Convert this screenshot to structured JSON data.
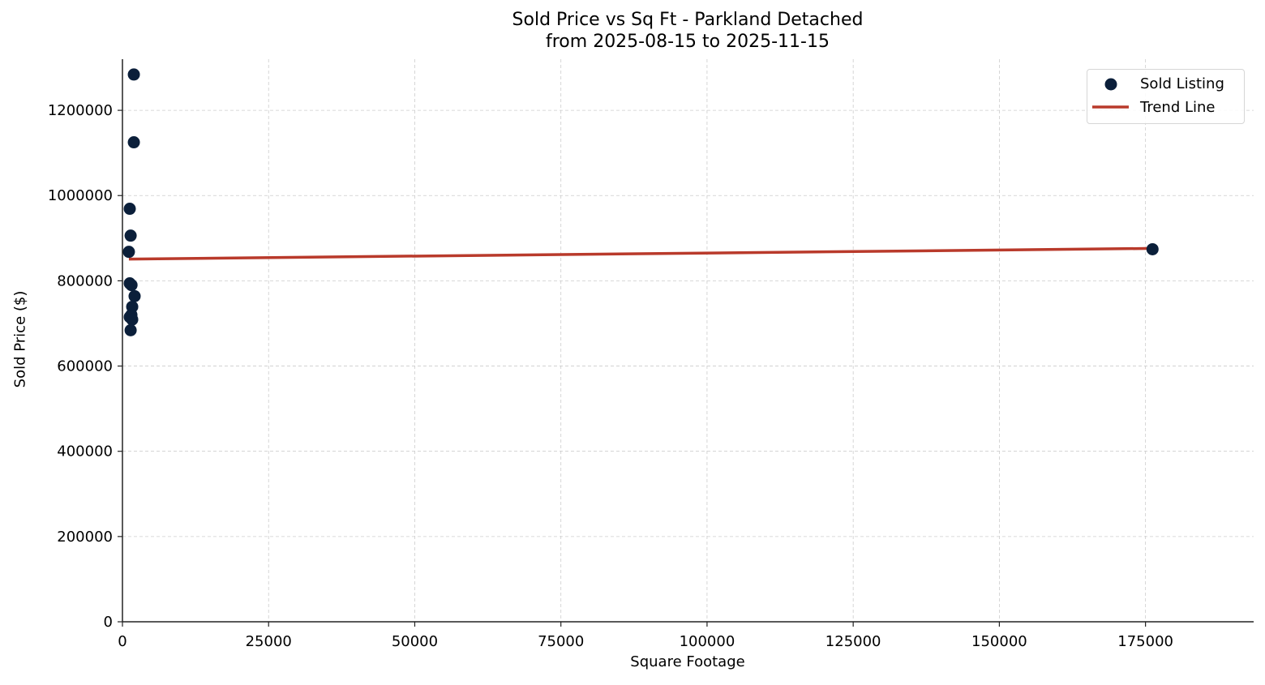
{
  "chart_data": {
    "type": "scatter",
    "title": "Sold Price vs Sq Ft - Parkland Detached",
    "subtitle": "from 2025-08-15 to 2025-11-15",
    "xlabel": "Square Footage",
    "ylabel": "Sold Price ($)",
    "xlim": [
      0,
      193500
    ],
    "ylim": [
      0,
      1320000
    ],
    "xticks": [
      0,
      25000,
      50000,
      75000,
      100000,
      125000,
      150000,
      175000
    ],
    "yticks": [
      0,
      200000,
      400000,
      600000,
      800000,
      1000000,
      1200000
    ],
    "grid": true,
    "legend_position": "upper right",
    "series": [
      {
        "name": "Sold Listing",
        "type": "scatter",
        "color": "#0b1f3a",
        "points": [
          {
            "x": 1950,
            "y": 1284000
          },
          {
            "x": 1950,
            "y": 1125000
          },
          {
            "x": 1250,
            "y": 969000
          },
          {
            "x": 1400,
            "y": 906000
          },
          {
            "x": 1100,
            "y": 868000
          },
          {
            "x": 1250,
            "y": 794000
          },
          {
            "x": 1550,
            "y": 790000
          },
          {
            "x": 2080,
            "y": 764000
          },
          {
            "x": 1670,
            "y": 739000
          },
          {
            "x": 1530,
            "y": 720000
          },
          {
            "x": 1250,
            "y": 715000
          },
          {
            "x": 1670,
            "y": 709000
          },
          {
            "x": 1400,
            "y": 684000
          },
          {
            "x": 176200,
            "y": 874000
          }
        ]
      },
      {
        "name": "Trend Line",
        "type": "line",
        "color": "#b93a2b",
        "points": [
          {
            "x": 1100,
            "y": 851000
          },
          {
            "x": 176200,
            "y": 876000
          }
        ]
      }
    ]
  },
  "labels": {
    "title_line1": "Sold Price vs Sq Ft - Parkland Detached",
    "title_line2": "from 2025-08-15 to 2025-11-15",
    "xlabel": "Square Footage",
    "ylabel": "Sold Price ($)",
    "legend_scatter": "Sold Listing",
    "legend_line": "Trend Line"
  }
}
